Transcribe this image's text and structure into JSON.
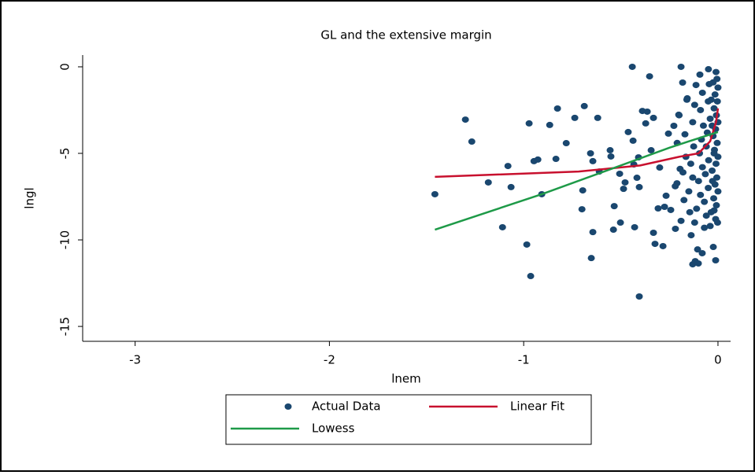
{
  "chart_data": {
    "type": "scatter",
    "title": "GL and the extensive margin",
    "x_label": "lnem",
    "y_label": "lngl",
    "xlim": [
      -3.27,
      0.065
    ],
    "ylim": [
      -15.86,
      0.68
    ],
    "xticks": [
      -3,
      -2,
      -1,
      0
    ],
    "yticks": [
      0,
      -5,
      -10,
      -15
    ],
    "series": [
      {
        "name": "Actual Data",
        "type": "scatter",
        "color": "#1a476f",
        "x": [
          -1.457,
          -1.3,
          -1.267,
          -1.182,
          -1.109,
          -1.065,
          -1.081,
          -0.984,
          -0.964,
          -0.972,
          -0.947,
          -0.927,
          -0.907,
          -0.866,
          -0.826,
          -0.834,
          -0.781,
          -0.737,
          -0.688,
          -0.619,
          -0.696,
          -0.7,
          -0.656,
          -0.644,
          -0.652,
          -0.644,
          -0.611,
          -0.555,
          -0.551,
          -0.534,
          -0.538,
          -0.506,
          -0.486,
          -0.478,
          -0.502,
          -0.462,
          -0.441,
          -0.437,
          -0.433,
          -0.429,
          -0.417,
          -0.409,
          -0.405,
          -0.405,
          -0.389,
          -0.372,
          -0.364,
          -0.352,
          -0.344,
          -0.332,
          -0.332,
          -0.324,
          -0.308,
          -0.3,
          -0.283,
          -0.275,
          -0.267,
          -0.255,
          -0.243,
          -0.227,
          -0.219,
          -0.211,
          -0.202,
          -0.19,
          -0.182,
          -0.158,
          -0.138,
          -0.13,
          -0.113,
          -0.093,
          -0.105,
          -0.081,
          -0.049,
          -0.024,
          -0.012,
          -0.117,
          -0.101,
          -0.01,
          -0.005,
          0,
          -0.015,
          -0.003,
          -0.02,
          -0.008,
          0,
          -0.012,
          -0.025,
          -0.004,
          -0.018,
          0,
          -0.01,
          -0.03,
          -0.006,
          -0.015,
          0,
          -0.022,
          -0.008,
          -0.035,
          -0.012,
          -0.04,
          -0.045,
          -0.05,
          -0.04,
          -0.055,
          -0.06,
          -0.048,
          -0.065,
          -0.05,
          -0.07,
          -0.06,
          -0.08,
          -0.09,
          -0.075,
          -0.085,
          -0.095,
          -0.08,
          -0.1,
          -0.09,
          -0.11,
          -0.12,
          -0.12,
          -0.13,
          -0.125,
          -0.14,
          -0.13,
          -0.15,
          -0.145,
          -0.16,
          -0.17,
          -0.165,
          -0.18,
          -0.175,
          -0.2,
          -0.21,
          -0.195,
          -0.22,
          -0.19,
          -0.025,
          -0.035,
          -0.03,
          -0.02,
          -0.028,
          -0.02,
          -0.002,
          -0.07
        ],
        "values": [
          -7.36,
          -3.05,
          -4.32,
          -6.68,
          -9.27,
          -6.95,
          -5.73,
          -10.27,
          -12.09,
          -3.27,
          -5.45,
          -5.36,
          -7.36,
          -3.36,
          -2.41,
          -5.32,
          -4.41,
          -2.95,
          -2.27,
          -2.95,
          -7.14,
          -8.23,
          -5.0,
          -5.45,
          -11.05,
          -9.55,
          -6.05,
          -4.82,
          -5.18,
          -8.05,
          -9.41,
          -6.18,
          -7.05,
          -6.68,
          -9.0,
          -3.77,
          0,
          -4.27,
          -5.64,
          -9.27,
          -6.41,
          -5.23,
          -13.27,
          -6.95,
          -2.55,
          -3.27,
          -2.59,
          -0.55,
          -4.82,
          -2.95,
          -9.59,
          -10.23,
          -8.18,
          -5.82,
          -10.36,
          -8.09,
          -7.45,
          -3.86,
          -8.27,
          -3.41,
          -9.36,
          -6.73,
          -2.77,
          0,
          -0.91,
          -1.82,
          -9.73,
          -11.41,
          -1.05,
          -0.45,
          -10.55,
          -10.77,
          -0.14,
          -10.41,
          -11.18,
          -11.23,
          -11.36,
          -0.3,
          -0.7,
          -1.2,
          -1.6,
          -2.0,
          -2.4,
          -2.8,
          -3.2,
          -3.6,
          -4.0,
          -4.4,
          -4.8,
          -5.2,
          -5.6,
          -6.0,
          -6.4,
          -6.8,
          -7.2,
          -7.6,
          -8.0,
          -8.4,
          -8.8,
          -9.2,
          -1.0,
          -2.0,
          -3.0,
          -3.8,
          -4.6,
          -5.4,
          -6.2,
          -7.0,
          -7.8,
          -8.6,
          -1.5,
          -2.5,
          -3.4,
          -4.2,
          -5.0,
          -5.8,
          -6.6,
          -7.4,
          -8.2,
          -9.0,
          -2.2,
          -3.2,
          -4.6,
          -5.6,
          -6.4,
          -7.2,
          -8.4,
          -1.9,
          -3.9,
          -5.2,
          -6.1,
          -7.7,
          -2.8,
          -4.4,
          -5.9,
          -6.9,
          -8.9,
          -0.9,
          -1.9,
          -3.4,
          -5.0,
          -6.6,
          -8.3,
          -9.0,
          -9.3
        ]
      },
      {
        "name": "Linear Fit",
        "type": "line",
        "color": "#c8102e",
        "x": [
          -1.457,
          -0.717,
          -0.4,
          -0.2,
          -0.1,
          -0.04,
          -0.01,
          0
        ],
        "values": [
          -6.36,
          -6.05,
          -5.7,
          -5.2,
          -5.0,
          -4.3,
          -3.2,
          -2.4
        ]
      },
      {
        "name": "Lowess",
        "type": "line",
        "color": "#1e9a48",
        "x": [
          -1.457,
          -0.907,
          -0.251,
          -0.154,
          0
        ],
        "values": [
          -9.41,
          -7.36,
          -4.68,
          -4.32,
          -3.77
        ]
      }
    ]
  }
}
